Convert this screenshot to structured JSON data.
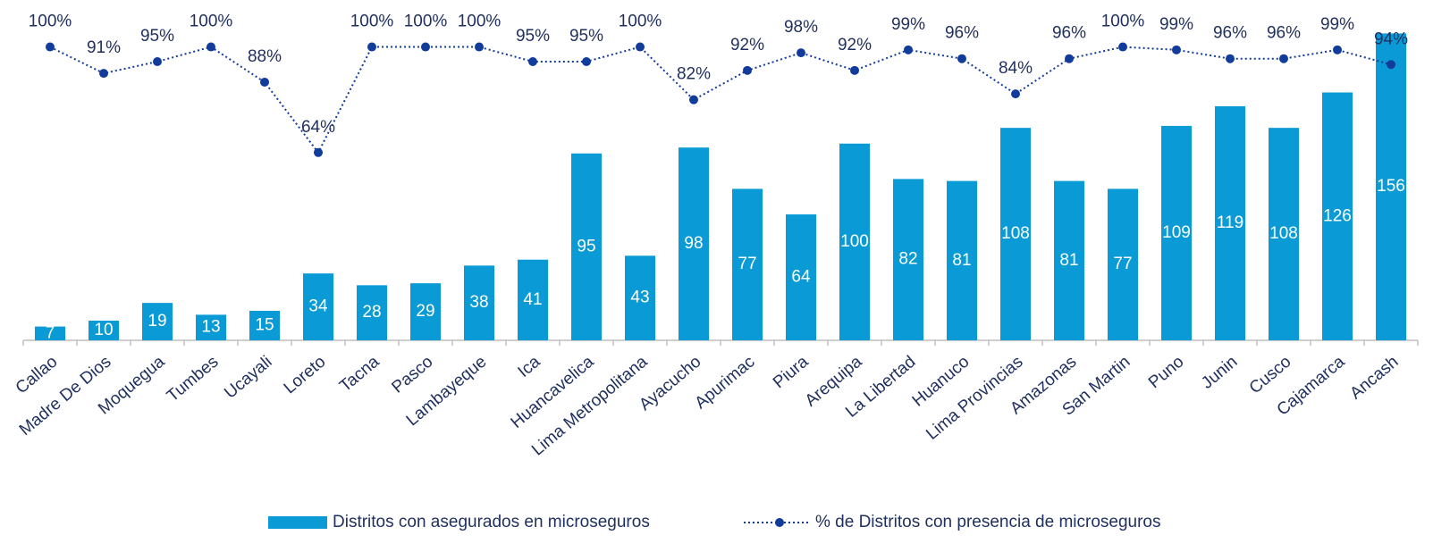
{
  "chart_data": {
    "type": "bar_line",
    "categories": [
      "Callao",
      "Madre De Dios",
      "Moquegua",
      "Tumbes",
      "Ucayali",
      "Loreto",
      "Tacna",
      "Pasco",
      "Lambayeque",
      "Ica",
      "Huancavelica",
      "Lima Metropolitana",
      "Ayacucho",
      "Apurimac",
      "Piura",
      "Arequipa",
      "La Libertad",
      "Huanuco",
      "Lima Provincias",
      "Amazonas",
      "San Martin",
      "Puno",
      "Junin",
      "Cusco",
      "Cajamarca",
      "Ancash"
    ],
    "series": [
      {
        "name": "Distritos con asegurados en microseguros",
        "type": "bar",
        "color": "#0a9bd7",
        "values": [
          7,
          10,
          19,
          13,
          15,
          34,
          28,
          29,
          38,
          41,
          95,
          43,
          98,
          77,
          64,
          100,
          82,
          81,
          108,
          81,
          77,
          109,
          119,
          108,
          126,
          156
        ]
      },
      {
        "name": "% de Distritos con presencia de microseguros",
        "type": "line",
        "axis": "y2",
        "color": "#123c9c",
        "values": [
          100,
          91,
          95,
          100,
          88,
          64,
          100,
          100,
          100,
          95,
          95,
          100,
          82,
          92,
          98,
          92,
          99,
          96,
          84,
          96,
          100,
          99,
          96,
          96,
          99,
          94
        ],
        "value_labels": [
          "100%",
          "91%",
          "95%",
          "100%",
          "88%",
          "64%",
          "100%",
          "100%",
          "100%",
          "95%",
          "95%",
          "100%",
          "82%",
          "92%",
          "98%",
          "92%",
          "99%",
          "96%",
          "84%",
          "96%",
          "100%",
          "99%",
          "96%",
          "96%",
          "99%",
          "94%"
        ]
      }
    ],
    "ylim": [
      0,
      173
    ],
    "y2lim": [
      0,
      116
    ],
    "legend": "bottom"
  }
}
